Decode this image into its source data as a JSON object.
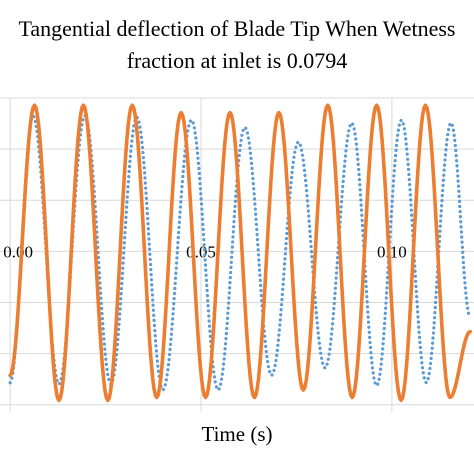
{
  "chart_data": {
    "type": "line",
    "title_lines": [
      "Tangential deflection of Blade Tip When Wetness",
      "fraction at inlet is 0.0794"
    ],
    "xlabel": "Time (s)",
    "ylabel": "",
    "x_ticks": [
      "0.00",
      "0.05",
      "0.10"
    ],
    "xlim": [
      -0.005,
      0.1215
    ],
    "ylim": [
      -1.1,
      1.05
    ],
    "grid": true,
    "series": [
      {
        "color": "#5B9BD5",
        "style": "dotted",
        "cycles": 18,
        "amplitude": 0.93,
        "points": [
          [
            0.0,
            -0.9
          ],
          [
            0.006,
            0.93
          ],
          [
            0.0128,
            -0.91
          ],
          [
            0.0196,
            0.93
          ],
          [
            0.0264,
            -0.91
          ],
          [
            0.0332,
            0.92
          ],
          [
            0.04,
            -0.95
          ],
          [
            0.0475,
            0.9
          ],
          [
            0.0545,
            -0.95
          ],
          [
            0.0615,
            0.85
          ],
          [
            0.0685,
            -0.85
          ],
          [
            0.0755,
            0.75
          ],
          [
            0.0825,
            -0.8
          ],
          [
            0.0895,
            0.88
          ],
          [
            0.096,
            -0.92
          ],
          [
            0.1025,
            0.9
          ],
          [
            0.109,
            -0.9
          ],
          [
            0.1155,
            0.88
          ],
          [
            0.1205,
            -0.45
          ]
        ]
      },
      {
        "color": "#ED7D31",
        "style": "solid",
        "amplitude": 1.0,
        "points": [
          [
            0.0,
            -0.85
          ],
          [
            0.0064,
            1.0
          ],
          [
            0.0128,
            -1.02
          ],
          [
            0.0192,
            1.0
          ],
          [
            0.0256,
            -1.02
          ],
          [
            0.032,
            1.0
          ],
          [
            0.0384,
            -1.0
          ],
          [
            0.0448,
            0.95
          ],
          [
            0.0512,
            -1.0
          ],
          [
            0.0576,
            0.95
          ],
          [
            0.064,
            -1.0
          ],
          [
            0.0704,
            0.95
          ],
          [
            0.0768,
            -0.95
          ],
          [
            0.0832,
            1.0
          ],
          [
            0.0896,
            -1.0
          ],
          [
            0.096,
            1.0
          ],
          [
            0.1024,
            -1.02
          ],
          [
            0.1088,
            1.0
          ],
          [
            0.1152,
            -1.0
          ],
          [
            0.1205,
            -0.55
          ]
        ]
      }
    ]
  }
}
